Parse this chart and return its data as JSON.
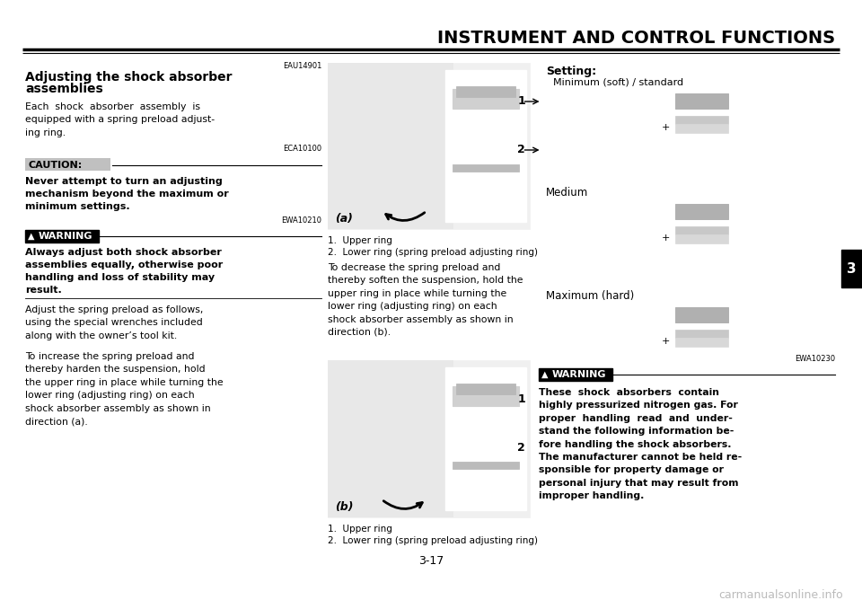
{
  "bg_color": "#ffffff",
  "title": "INSTRUMENT AND CONTROL FUNCTIONS",
  "page_number": "3-17",
  "section_code": "EAU14901",
  "caution_code": "ECA10100",
  "warning_code1": "EWA10210",
  "warning_code2": "EWA10230",
  "warning_label": "WARNING",
  "caution_label": "CAUTION:",
  "watermark": "carmanualsonline.info",
  "tab_text": "3"
}
